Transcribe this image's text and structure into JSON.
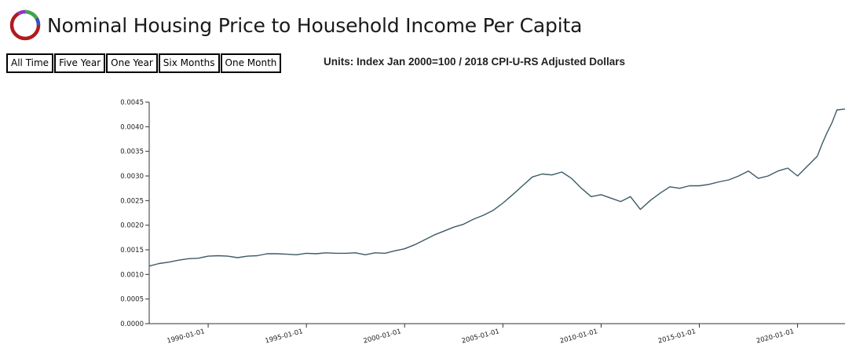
{
  "page": {
    "title": "Nominal Housing Price to Household Income Per Capita",
    "units": "Units: Index Jan 2000=100 / 2018 CPI-U-RS Adjusted Dollars"
  },
  "range_buttons": [
    "All Time",
    "Five Year",
    "One Year",
    "Six Months",
    "One Month"
  ],
  "colors": {
    "line": "#3d5a66",
    "logo_ring": "#b01c1c",
    "logo_green": "#3aa84a",
    "logo_blue": "#3a4fbf",
    "logo_purple": "#8a3ac0"
  },
  "chart_data": {
    "type": "line",
    "title": "",
    "xlabel": "",
    "ylabel": "",
    "xlim": [
      "1987-01-01",
      "2022-06-01"
    ],
    "ylim": [
      0,
      0.0045
    ],
    "y_ticks": [
      "0.0000",
      "0.0005",
      "0.0010",
      "0.0015",
      "0.0020",
      "0.0025",
      "0.0030",
      "0.0035",
      "0.0040",
      "0.0045"
    ],
    "x_ticks": [
      "1990-01-01",
      "1995-01-01",
      "2000-01-01",
      "2005-01-01",
      "2010-01-01",
      "2015-01-01",
      "2020-01-01"
    ],
    "grid": false,
    "series": [
      {
        "x": [
          "1987-01-01",
          "1987-07-01",
          "1988-01-01",
          "1988-07-01",
          "1989-01-01",
          "1989-07-01",
          "1990-01-01",
          "1990-07-01",
          "1991-01-01",
          "1991-07-01",
          "1992-01-01",
          "1992-07-01",
          "1993-01-01",
          "1993-07-01",
          "1994-01-01",
          "1994-07-01",
          "1995-01-01",
          "1995-07-01",
          "1996-01-01",
          "1996-07-01",
          "1997-01-01",
          "1997-07-01",
          "1998-01-01",
          "1998-07-01",
          "1999-01-01",
          "1999-07-01",
          "2000-01-01",
          "2000-07-01",
          "2001-01-01",
          "2001-07-01",
          "2002-01-01",
          "2002-07-01",
          "2003-01-01",
          "2003-07-01",
          "2004-01-01",
          "2004-07-01",
          "2005-01-01",
          "2005-07-01",
          "2006-01-01",
          "2006-07-01",
          "2007-01-01",
          "2007-07-01",
          "2008-01-01",
          "2008-07-01",
          "2009-01-01",
          "2009-07-01",
          "2010-01-01",
          "2010-07-01",
          "2011-01-01",
          "2011-07-01",
          "2012-01-01",
          "2012-07-01",
          "2013-01-01",
          "2013-07-01",
          "2014-01-01",
          "2014-07-01",
          "2015-01-01",
          "2015-07-01",
          "2016-01-01",
          "2016-07-01",
          "2017-01-01",
          "2017-07-01",
          "2018-01-01",
          "2018-07-01",
          "2019-01-01",
          "2019-07-01",
          "2020-01-01",
          "2020-07-01",
          "2021-01-01",
          "2021-04-01",
          "2021-07-01",
          "2021-10-01",
          "2022-01-01",
          "2022-06-01"
        ],
        "y": [
          0.00117,
          0.00122,
          0.00125,
          0.00129,
          0.00132,
          0.00133,
          0.00137,
          0.00138,
          0.00137,
          0.00134,
          0.00137,
          0.00138,
          0.00142,
          0.00142,
          0.00141,
          0.0014,
          0.00143,
          0.00142,
          0.00144,
          0.00143,
          0.00143,
          0.00144,
          0.0014,
          0.00144,
          0.00143,
          0.00148,
          0.00152,
          0.0016,
          0.0017,
          0.0018,
          0.00188,
          0.00196,
          0.00202,
          0.00212,
          0.0022,
          0.0023,
          0.00245,
          0.00262,
          0.0028,
          0.00298,
          0.00304,
          0.00302,
          0.00308,
          0.00295,
          0.00275,
          0.00258,
          0.00262,
          0.00255,
          0.00248,
          0.00258,
          0.00232,
          0.0025,
          0.00265,
          0.00278,
          0.00275,
          0.0028,
          0.0028,
          0.00283,
          0.00288,
          0.00292,
          0.003,
          0.0031,
          0.00295,
          0.003,
          0.0031,
          0.00316,
          0.003,
          0.0032,
          0.0034,
          0.00365,
          0.00388,
          0.00408,
          0.00434,
          0.00436
        ]
      }
    ]
  }
}
